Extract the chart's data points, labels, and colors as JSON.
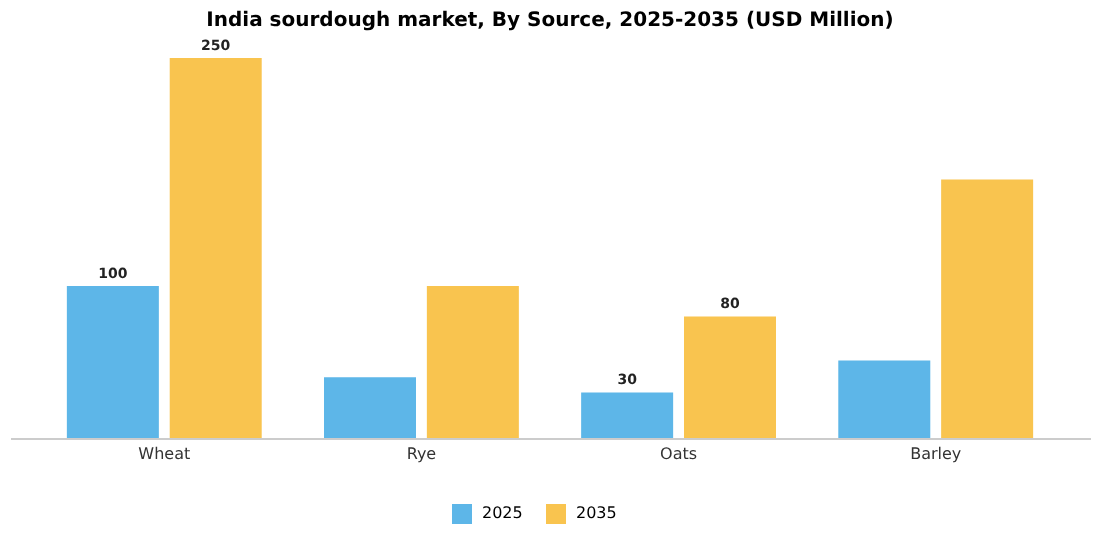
{
  "chart_data": {
    "type": "bar",
    "title": "India sourdough market, By Source, 2025-2035 (USD Million)",
    "categories": [
      "Wheat",
      "Rye",
      "Oats",
      "Barley"
    ],
    "series": [
      {
        "name": "2025",
        "color": "#5db6e8",
        "values": [
          100,
          40,
          30,
          51
        ],
        "value_labels": [
          "100",
          null,
          "30",
          null
        ]
      },
      {
        "name": "2035",
        "color": "#f9c44f",
        "values": [
          250,
          100,
          80,
          170
        ],
        "value_labels": [
          "250",
          null,
          "80",
          null
        ]
      }
    ],
    "legend": "bottom",
    "grid": false,
    "tick_labels": "x"
  }
}
